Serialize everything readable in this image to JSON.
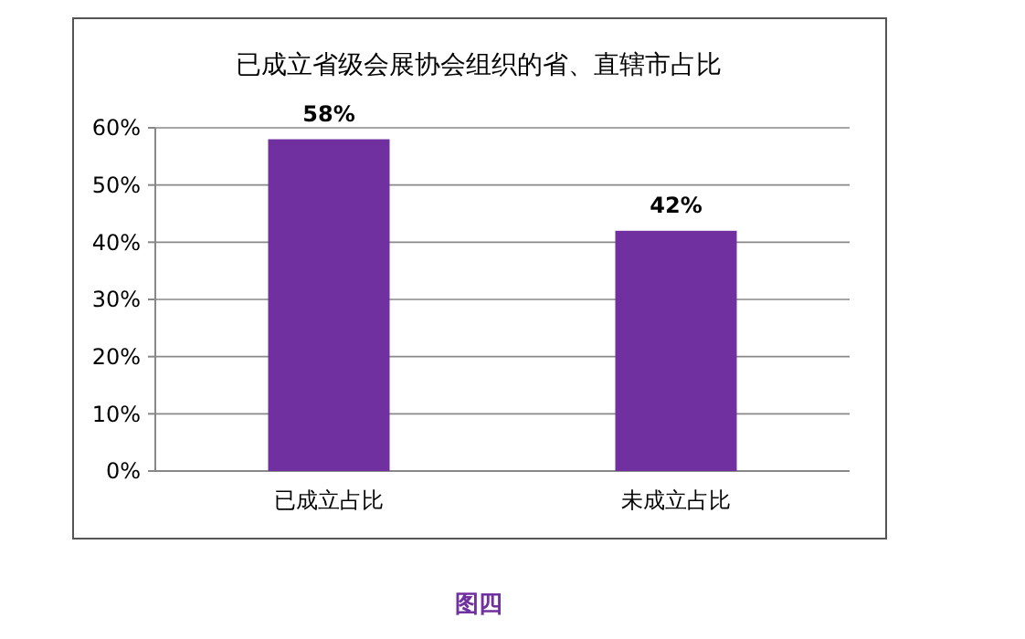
{
  "chart_data": {
    "type": "bar",
    "title": "已成立省级会展协会组织的省、直辖市占比",
    "categories": [
      "已成立占比",
      "未成立占比"
    ],
    "values": [
      58,
      42
    ],
    "value_labels": [
      "58%",
      "42%"
    ],
    "color": "#7030a0",
    "ylim": [
      0,
      60
    ],
    "yticks": [
      {
        "value": 0,
        "label": "0%"
      },
      {
        "value": 10,
        "label": "10%"
      },
      {
        "value": 20,
        "label": "20%"
      },
      {
        "value": 30,
        "label": "30%"
      },
      {
        "value": 40,
        "label": "40%"
      },
      {
        "value": 50,
        "label": "50%"
      },
      {
        "value": 60,
        "label": "60%"
      }
    ],
    "grid": true,
    "annotations": [
      "图四"
    ]
  }
}
